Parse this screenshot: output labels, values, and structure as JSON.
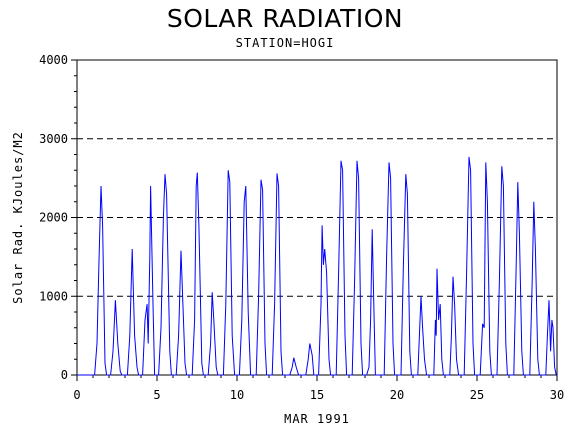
{
  "chart_data": {
    "type": "line",
    "title": "SOLAR RADIATION",
    "subtitle": "STATION=HOGI",
    "xlabel": "MAR 1991",
    "ylabel": "Solar Rad. KJoules/M2",
    "xlim": [
      0,
      30
    ],
    "ylim": [
      0,
      4000
    ],
    "x_ticks": [
      0,
      5,
      10,
      15,
      20,
      25,
      30
    ],
    "y_ticks": [
      0,
      1000,
      2000,
      3000,
      4000
    ],
    "grid": "horizontal dashed",
    "series_color": "#0000ff",
    "series": [
      {
        "values": [
          [
            0.0,
            0
          ],
          [
            1.1,
            0
          ],
          [
            1.25,
            400
          ],
          [
            1.38,
            1500
          ],
          [
            1.5,
            2400
          ],
          [
            1.6,
            1900
          ],
          [
            1.75,
            150
          ],
          [
            1.85,
            0
          ],
          [
            2.1,
            0
          ],
          [
            2.25,
            300
          ],
          [
            2.4,
            950
          ],
          [
            2.55,
            400
          ],
          [
            2.7,
            50
          ],
          [
            2.8,
            0
          ],
          [
            3.15,
            0
          ],
          [
            3.3,
            500
          ],
          [
            3.45,
            1600
          ],
          [
            3.6,
            500
          ],
          [
            3.75,
            100
          ],
          [
            3.85,
            0
          ],
          [
            4.1,
            0
          ],
          [
            4.25,
            700
          ],
          [
            4.38,
            900
          ],
          [
            4.45,
            400
          ],
          [
            4.55,
            1500
          ],
          [
            4.6,
            2400
          ],
          [
            4.75,
            900
          ],
          [
            4.85,
            0
          ],
          [
            5.1,
            0
          ],
          [
            5.25,
            600
          ],
          [
            5.4,
            2000
          ],
          [
            5.5,
            2550
          ],
          [
            5.6,
            2300
          ],
          [
            5.8,
            300
          ],
          [
            5.9,
            0
          ],
          [
            6.2,
            0
          ],
          [
            6.35,
            500
          ],
          [
            6.5,
            1580
          ],
          [
            6.62,
            900
          ],
          [
            6.75,
            150
          ],
          [
            6.85,
            0
          ],
          [
            7.2,
            0
          ],
          [
            7.35,
            700
          ],
          [
            7.45,
            2400
          ],
          [
            7.52,
            2570
          ],
          [
            7.62,
            1900
          ],
          [
            7.8,
            150
          ],
          [
            7.9,
            0
          ],
          [
            8.2,
            0
          ],
          [
            8.35,
            400
          ],
          [
            8.45,
            1050
          ],
          [
            8.55,
            700
          ],
          [
            8.7,
            100
          ],
          [
            8.8,
            0
          ],
          [
            9.15,
            0
          ],
          [
            9.3,
            900
          ],
          [
            9.45,
            2600
          ],
          [
            9.55,
            2450
          ],
          [
            9.7,
            500
          ],
          [
            9.85,
            0
          ],
          [
            10.15,
            0
          ],
          [
            10.3,
            700
          ],
          [
            10.45,
            2200
          ],
          [
            10.55,
            2400
          ],
          [
            10.7,
            800
          ],
          [
            10.85,
            0
          ],
          [
            11.2,
            0
          ],
          [
            11.35,
            1000
          ],
          [
            11.5,
            2480
          ],
          [
            11.6,
            2350
          ],
          [
            11.75,
            400
          ],
          [
            11.85,
            0
          ],
          [
            12.2,
            0
          ],
          [
            12.35,
            900
          ],
          [
            12.5,
            2560
          ],
          [
            12.6,
            2400
          ],
          [
            12.75,
            300
          ],
          [
            12.85,
            0
          ],
          [
            13.3,
            0
          ],
          [
            13.45,
            100
          ],
          [
            13.55,
            220
          ],
          [
            13.7,
            100
          ],
          [
            13.85,
            0
          ],
          [
            14.3,
            0
          ],
          [
            14.45,
            200
          ],
          [
            14.55,
            400
          ],
          [
            14.7,
            250
          ],
          [
            14.8,
            0
          ],
          [
            15.1,
            0
          ],
          [
            15.25,
            900
          ],
          [
            15.32,
            1900
          ],
          [
            15.4,
            1400
          ],
          [
            15.48,
            1600
          ],
          [
            15.6,
            1300
          ],
          [
            15.75,
            200
          ],
          [
            15.85,
            0
          ],
          [
            16.2,
            0
          ],
          [
            16.35,
            1300
          ],
          [
            16.5,
            2720
          ],
          [
            16.6,
            2600
          ],
          [
            16.75,
            500
          ],
          [
            16.85,
            0
          ],
          [
            17.2,
            0
          ],
          [
            17.35,
            1200
          ],
          [
            17.5,
            2720
          ],
          [
            17.6,
            2500
          ],
          [
            17.75,
            400
          ],
          [
            17.85,
            0
          ],
          [
            18.1,
            0
          ],
          [
            18.25,
            100
          ],
          [
            18.35,
            700
          ],
          [
            18.45,
            1850
          ],
          [
            18.55,
            900
          ],
          [
            18.65,
            0
          ],
          [
            19.2,
            0
          ],
          [
            19.35,
            1500
          ],
          [
            19.5,
            2700
          ],
          [
            19.6,
            2500
          ],
          [
            19.75,
            400
          ],
          [
            19.85,
            0
          ],
          [
            20.25,
            0
          ],
          [
            20.4,
            1400
          ],
          [
            20.55,
            2550
          ],
          [
            20.65,
            2300
          ],
          [
            20.8,
            300
          ],
          [
            20.9,
            0
          ],
          [
            21.3,
            0
          ],
          [
            21.4,
            500
          ],
          [
            21.5,
            1000
          ],
          [
            21.6,
            600
          ],
          [
            21.72,
            200
          ],
          [
            21.85,
            0
          ],
          [
            22.3,
            0
          ],
          [
            22.4,
            700
          ],
          [
            22.45,
            500
          ],
          [
            22.5,
            1350
          ],
          [
            22.6,
            700
          ],
          [
            22.7,
            900
          ],
          [
            22.8,
            200
          ],
          [
            22.9,
            0
          ],
          [
            23.3,
            0
          ],
          [
            23.4,
            500
          ],
          [
            23.5,
            1250
          ],
          [
            23.6,
            900
          ],
          [
            23.72,
            200
          ],
          [
            23.85,
            0
          ],
          [
            24.2,
            0
          ],
          [
            24.35,
            1300
          ],
          [
            24.5,
            2770
          ],
          [
            24.6,
            2600
          ],
          [
            24.75,
            400
          ],
          [
            24.85,
            0
          ],
          [
            25.2,
            0
          ],
          [
            25.35,
            650
          ],
          [
            25.45,
            600
          ],
          [
            25.55,
            2700
          ],
          [
            25.65,
            2200
          ],
          [
            25.8,
            300
          ],
          [
            25.9,
            0
          ],
          [
            26.25,
            0
          ],
          [
            26.4,
            1200
          ],
          [
            26.55,
            2650
          ],
          [
            26.65,
            2400
          ],
          [
            26.8,
            400
          ],
          [
            26.9,
            0
          ],
          [
            27.3,
            0
          ],
          [
            27.45,
            1400
          ],
          [
            27.55,
            2450
          ],
          [
            27.65,
            1800
          ],
          [
            27.8,
            300
          ],
          [
            27.9,
            0
          ],
          [
            28.3,
            0
          ],
          [
            28.45,
            1200
          ],
          [
            28.55,
            2200
          ],
          [
            28.65,
            1600
          ],
          [
            28.8,
            200
          ],
          [
            28.9,
            0
          ],
          [
            29.3,
            0
          ],
          [
            29.4,
            500
          ],
          [
            29.5,
            950
          ],
          [
            29.6,
            300
          ],
          [
            29.68,
            700
          ],
          [
            29.75,
            600
          ],
          [
            29.85,
            100
          ],
          [
            29.95,
            0
          ],
          [
            30.0,
            0
          ]
        ]
      }
    ]
  }
}
